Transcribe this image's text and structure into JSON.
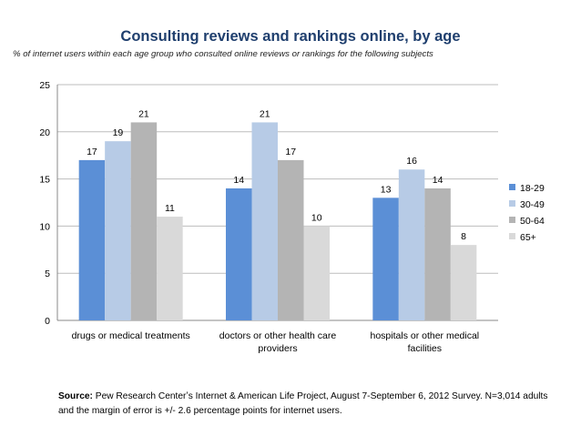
{
  "chart_data": {
    "type": "bar",
    "title": "Consulting reviews and rankings online, by age",
    "subtitle": "% of internet users within each age group who consulted online reviews or rankings for the following subjects",
    "categories": [
      [
        "drugs or medical treatments"
      ],
      [
        "doctors or other health care",
        "providers"
      ],
      [
        "hospitals or other medical",
        "facilities"
      ]
    ],
    "series": [
      {
        "name": "18-29",
        "color": "#5b8fd6",
        "values": [
          17,
          14,
          13
        ]
      },
      {
        "name": "30-49",
        "color": "#b7cbe6",
        "values": [
          19,
          21,
          16
        ]
      },
      {
        "name": "50-64",
        "color": "#b4b4b4",
        "values": [
          21,
          17,
          14
        ]
      },
      {
        "name": "65+",
        "color": "#d9d9d9",
        "values": [
          11,
          10,
          8
        ]
      }
    ],
    "ylim": [
      0,
      25
    ],
    "yticks": [
      0,
      5,
      10,
      15,
      20,
      25
    ],
    "grid": true,
    "legend": "right",
    "xlabel": "",
    "ylabel": ""
  },
  "source": {
    "label": "Source:",
    "text": " Pew Research Centerʼs Internet & American Life Project, August 7-September 6, 2012 Survey. N=3,014 adults and the margin of error is +/- 2.6 percentage points for internet users."
  }
}
